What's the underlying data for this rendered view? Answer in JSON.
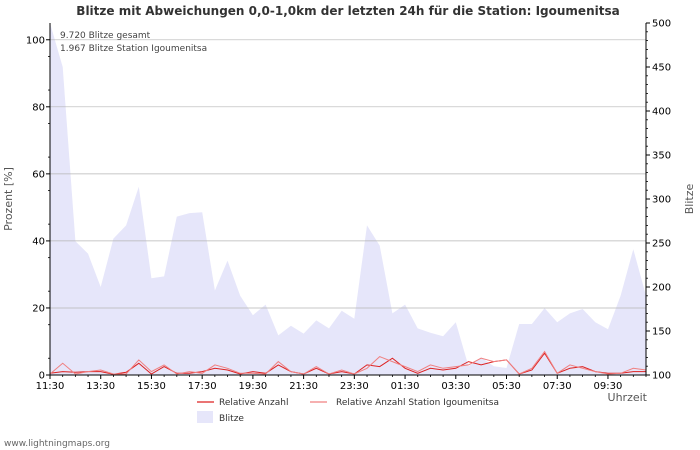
{
  "chart_data": {
    "type": "area",
    "title": "Blitze mit Abweichungen 0,0-1,0km der letzten 24h für die Station: Igoumenitsa",
    "xlabel": "Uhrzeit",
    "ylabel_left": "Prozent   [%]",
    "ylabel_right": "Blitze",
    "ylim_left": [
      0,
      105
    ],
    "ylim_right": [
      100,
      500
    ],
    "yticks_left": [
      0,
      20,
      40,
      60,
      80,
      100
    ],
    "yticks_right": [
      100,
      150,
      200,
      250,
      300,
      350,
      400,
      450,
      500
    ],
    "x_tick_labels": [
      "11:30",
      "13:30",
      "15:30",
      "17:30",
      "19:30",
      "21:30",
      "23:30",
      "01:30",
      "03:30",
      "05:30",
      "07:30",
      "09:30"
    ],
    "grid": true,
    "annotations": [
      "9.720 Blitze gesamt",
      "1.967 Blitze Station Igoumenitsa"
    ],
    "credit": "www.lightningmaps.org",
    "legend": {
      "relative": "Relative Anzahl",
      "station": "Relative Anzahl Station Igoumenitsa",
      "blitze": "Blitze"
    },
    "series": [
      {
        "name": "Blitze",
        "axis": "right",
        "color": "#e6e6fa",
        "values": [
          500,
          450,
          252,
          238,
          200,
          255,
          270,
          314,
          210,
          212,
          280,
          284,
          285,
          196,
          230,
          190,
          168,
          180,
          145,
          156,
          147,
          162,
          153,
          173,
          164,
          270,
          247,
          170,
          180,
          153,
          148,
          144,
          160,
          110,
          120,
          110,
          108,
          158,
          158,
          176,
          160,
          170,
          175,
          160,
          152,
          190,
          243,
          190
        ]
      },
      {
        "name": "Relative Anzahl",
        "axis": "left",
        "color": "#dd2222",
        "values": [
          0.5,
          1.0,
          0.8,
          1.0,
          1.0,
          0.2,
          0.8,
          3.5,
          0.3,
          2.5,
          0.5,
          0.5,
          1.0,
          2.0,
          1.5,
          0.3,
          1.0,
          0.5,
          3.0,
          1.0,
          0.3,
          2.0,
          0.3,
          1.0,
          0.3,
          3.0,
          2.5,
          5.0,
          2.0,
          0.5,
          2.0,
          1.5,
          2.0,
          4.0,
          3.0,
          4.0,
          4.5,
          0.3,
          1.5,
          6.5,
          0.5,
          2.0,
          2.5,
          1.0,
          0.5,
          0.5,
          1.0,
          1.0
        ]
      },
      {
        "name": "Relative Anzahl Station Igoumenitsa",
        "axis": "left",
        "color": "#f08080",
        "values": [
          0.3,
          3.5,
          0.3,
          1.0,
          1.5,
          0.3,
          0.3,
          4.5,
          1.0,
          3.0,
          0.3,
          1.0,
          0.5,
          3.0,
          2.0,
          0.5,
          0.5,
          0.3,
          4.0,
          1.0,
          0.3,
          2.5,
          0.3,
          1.5,
          0.3,
          2.0,
          5.5,
          4.0,
          2.5,
          1.0,
          3.0,
          2.0,
          2.5,
          3.0,
          5.0,
          4.0,
          4.5,
          0.3,
          2.0,
          7.0,
          0.5,
          3.0,
          2.0,
          1.0,
          0.3,
          0.5,
          2.0,
          1.5
        ]
      }
    ]
  }
}
